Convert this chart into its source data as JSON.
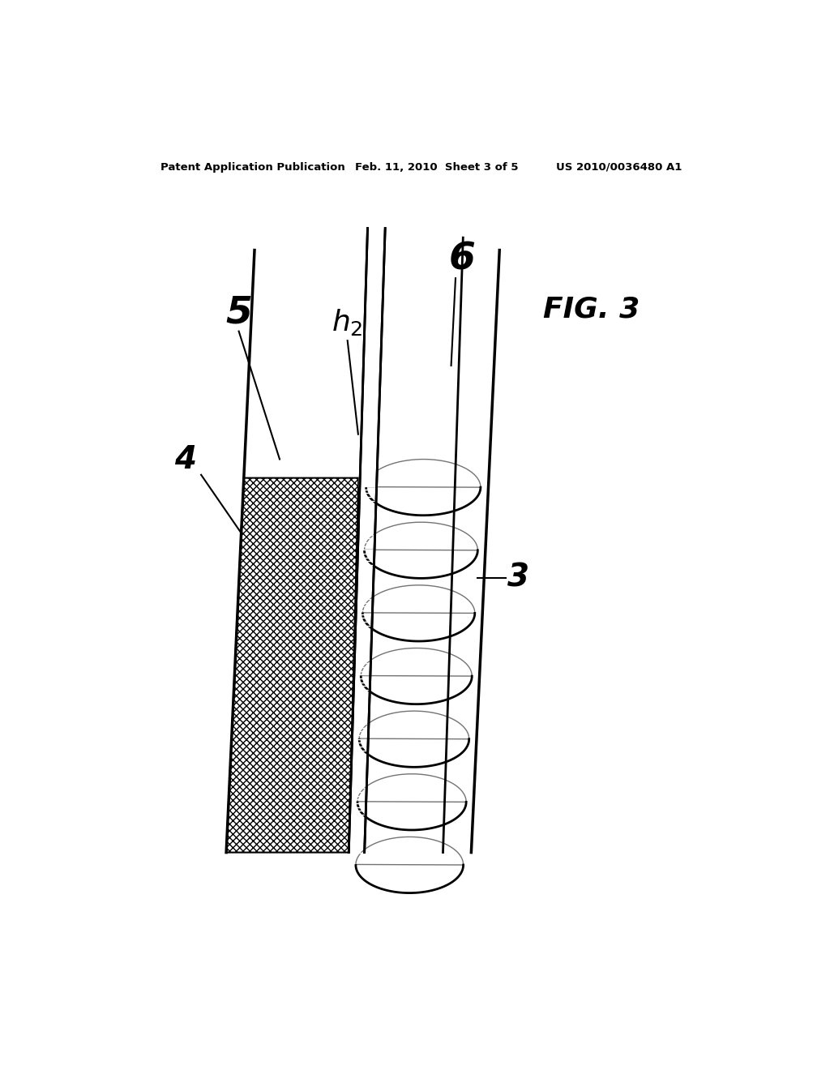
{
  "header_left": "Patent Application Publication",
  "header_mid": "Feb. 11, 2010  Sheet 3 of 5",
  "header_right": "US 2010/0036480 A1",
  "fig_label": "FIG. 3",
  "background_color": "#ffffff",
  "line_color": "#000000"
}
